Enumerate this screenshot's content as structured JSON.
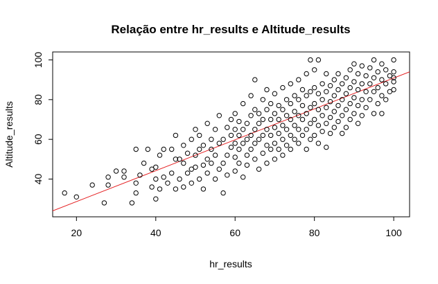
{
  "chart_data": {
    "type": "scatter",
    "title": "Relação entre hr_results e Altitude_results",
    "xlabel": "hr_results",
    "ylabel": "Altitude_results",
    "xlim": [
      14,
      104
    ],
    "ylim": [
      21,
      104
    ],
    "x_ticks": [
      20,
      40,
      60,
      80,
      100
    ],
    "y_ticks": [
      40,
      60,
      80,
      100
    ],
    "grid": false,
    "marker": "open-circle",
    "colors": {
      "points": "#000000",
      "regression_line": "#e41a1c"
    },
    "regression_line": {
      "x": [
        14,
        104
      ],
      "y": [
        24,
        94
      ]
    },
    "points": [
      [
        17,
        33
      ],
      [
        20,
        31
      ],
      [
        24,
        37
      ],
      [
        27,
        28
      ],
      [
        28,
        41
      ],
      [
        28,
        37
      ],
      [
        30,
        44
      ],
      [
        32,
        44
      ],
      [
        32,
        41
      ],
      [
        34,
        28
      ],
      [
        35,
        33
      ],
      [
        35,
        38
      ],
      [
        35,
        55
      ],
      [
        36,
        42
      ],
      [
        37,
        48
      ],
      [
        38,
        55
      ],
      [
        39,
        45
      ],
      [
        39,
        36
      ],
      [
        40,
        40
      ],
      [
        40,
        46
      ],
      [
        40,
        30
      ],
      [
        41,
        35
      ],
      [
        41,
        52
      ],
      [
        42,
        41
      ],
      [
        42,
        55
      ],
      [
        43,
        38
      ],
      [
        44,
        43
      ],
      [
        44,
        55
      ],
      [
        45,
        50
      ],
      [
        45,
        35
      ],
      [
        45,
        62
      ],
      [
        46,
        40
      ],
      [
        46,
        50
      ],
      [
        47,
        36
      ],
      [
        47,
        48
      ],
      [
        47,
        57
      ],
      [
        48,
        43
      ],
      [
        48,
        53
      ],
      [
        49,
        38
      ],
      [
        49,
        60
      ],
      [
        49,
        45
      ],
      [
        50,
        46
      ],
      [
        50,
        52
      ],
      [
        50,
        65
      ],
      [
        51,
        40
      ],
      [
        51,
        55
      ],
      [
        51,
        62
      ],
      [
        52,
        47
      ],
      [
        52,
        57
      ],
      [
        52,
        35
      ],
      [
        53,
        50
      ],
      [
        53,
        43
      ],
      [
        53,
        68
      ],
      [
        54,
        55
      ],
      [
        54,
        60
      ],
      [
        54,
        48
      ],
      [
        55,
        40
      ],
      [
        55,
        65
      ],
      [
        55,
        52
      ],
      [
        56,
        58
      ],
      [
        56,
        45
      ],
      [
        56,
        72
      ],
      [
        57,
        33
      ],
      [
        57,
        48
      ],
      [
        57,
        60
      ],
      [
        58,
        52
      ],
      [
        58,
        66
      ],
      [
        58,
        42
      ],
      [
        59,
        56
      ],
      [
        59,
        70
      ],
      [
        59,
        62
      ],
      [
        60,
        44
      ],
      [
        60,
        51
      ],
      [
        60,
        58
      ],
      [
        60,
        65
      ],
      [
        60,
        73
      ],
      [
        61,
        48
      ],
      [
        61,
        55
      ],
      [
        61,
        62
      ],
      [
        61,
        69
      ],
      [
        62,
        41
      ],
      [
        62,
        58
      ],
      [
        62,
        65
      ],
      [
        62,
        78
      ],
      [
        63,
        52
      ],
      [
        63,
        60
      ],
      [
        63,
        68
      ],
      [
        63,
        47
      ],
      [
        64,
        55
      ],
      [
        64,
        62
      ],
      [
        64,
        72
      ],
      [
        64,
        82
      ],
      [
        65,
        50
      ],
      [
        65,
        58
      ],
      [
        65,
        65
      ],
      [
        65,
        75
      ],
      [
        65,
        90
      ],
      [
        66,
        45
      ],
      [
        66,
        60
      ],
      [
        66,
        68
      ],
      [
        66,
        73
      ],
      [
        67,
        53
      ],
      [
        67,
        62
      ],
      [
        67,
        70
      ],
      [
        67,
        80
      ],
      [
        68,
        48
      ],
      [
        68,
        57
      ],
      [
        68,
        65
      ],
      [
        68,
        75
      ],
      [
        68,
        85
      ],
      [
        69,
        55
      ],
      [
        69,
        62
      ],
      [
        69,
        70
      ],
      [
        69,
        78
      ],
      [
        70,
        50
      ],
      [
        70,
        58
      ],
      [
        70,
        66
      ],
      [
        70,
        73
      ],
      [
        70,
        83
      ],
      [
        71,
        55
      ],
      [
        71,
        63
      ],
      [
        71,
        70
      ],
      [
        71,
        77
      ],
      [
        72,
        52
      ],
      [
        72,
        60
      ],
      [
        72,
        67
      ],
      [
        72,
        75
      ],
      [
        72,
        86
      ],
      [
        73,
        57
      ],
      [
        73,
        65
      ],
      [
        73,
        72
      ],
      [
        73,
        80
      ],
      [
        74,
        55
      ],
      [
        74,
        62
      ],
      [
        74,
        70
      ],
      [
        74,
        78
      ],
      [
        74,
        88
      ],
      [
        75,
        60
      ],
      [
        75,
        67
      ],
      [
        75,
        74
      ],
      [
        75,
        82
      ],
      [
        76,
        58
      ],
      [
        76,
        65
      ],
      [
        76,
        72
      ],
      [
        76,
        80
      ],
      [
        76,
        90
      ],
      [
        77,
        62
      ],
      [
        77,
        70
      ],
      [
        77,
        77
      ],
      [
        77,
        85
      ],
      [
        78,
        55
      ],
      [
        78,
        65
      ],
      [
        78,
        73
      ],
      [
        78,
        82
      ],
      [
        78,
        93
      ],
      [
        79,
        60
      ],
      [
        79,
        68
      ],
      [
        79,
        76
      ],
      [
        79,
        84
      ],
      [
        79,
        100
      ],
      [
        80,
        62
      ],
      [
        80,
        70
      ],
      [
        80,
        78
      ],
      [
        80,
        86
      ],
      [
        80,
        95
      ],
      [
        81,
        58
      ],
      [
        81,
        67
      ],
      [
        81,
        75
      ],
      [
        81,
        83
      ],
      [
        81,
        100
      ],
      [
        82,
        64
      ],
      [
        82,
        72
      ],
      [
        82,
        80
      ],
      [
        82,
        88
      ],
      [
        83,
        56
      ],
      [
        83,
        68
      ],
      [
        83,
        76
      ],
      [
        83,
        84
      ],
      [
        83,
        93
      ],
      [
        84,
        63
      ],
      [
        84,
        71
      ],
      [
        84,
        79
      ],
      [
        84,
        87
      ],
      [
        85,
        66
      ],
      [
        85,
        74
      ],
      [
        85,
        82
      ],
      [
        85,
        90
      ],
      [
        86,
        69
      ],
      [
        86,
        77
      ],
      [
        86,
        85
      ],
      [
        86,
        93
      ],
      [
        87,
        63
      ],
      [
        87,
        72
      ],
      [
        87,
        80
      ],
      [
        87,
        88
      ],
      [
        88,
        66
      ],
      [
        88,
        75
      ],
      [
        88,
        83
      ],
      [
        88,
        91
      ],
      [
        89,
        70
      ],
      [
        89,
        78
      ],
      [
        89,
        86
      ],
      [
        89,
        95
      ],
      [
        90,
        73
      ],
      [
        90,
        81
      ],
      [
        90,
        89
      ],
      [
        90,
        98
      ],
      [
        91,
        68
      ],
      [
        91,
        77
      ],
      [
        91,
        85
      ],
      [
        91,
        93
      ],
      [
        92,
        72
      ],
      [
        92,
        80
      ],
      [
        92,
        88
      ],
      [
        92,
        97
      ],
      [
        93,
        76
      ],
      [
        93,
        84
      ],
      [
        93,
        92
      ],
      [
        94,
        80
      ],
      [
        94,
        88
      ],
      [
        94,
        96
      ],
      [
        95,
        73
      ],
      [
        95,
        84
      ],
      [
        95,
        91
      ],
      [
        95,
        100
      ],
      [
        96,
        78
      ],
      [
        96,
        86
      ],
      [
        96,
        94
      ],
      [
        97,
        73
      ],
      [
        97,
        82
      ],
      [
        97,
        90
      ],
      [
        97,
        98
      ],
      [
        98,
        80
      ],
      [
        98,
        88
      ],
      [
        98,
        95
      ],
      [
        99,
        84
      ],
      [
        99,
        92
      ],
      [
        100,
        85
      ],
      [
        100,
        89
      ],
      [
        100,
        91
      ],
      [
        100,
        94
      ],
      [
        100,
        100
      ]
    ]
  }
}
